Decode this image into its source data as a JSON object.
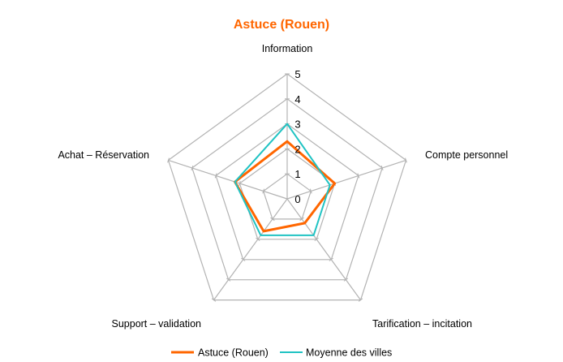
{
  "chart_data": {
    "type": "radar",
    "title": "Astuce (Rouen)",
    "axes": [
      "Information",
      "Compte personnel",
      "Tarification – incitation",
      "Support – validation",
      "Achat – Réservation"
    ],
    "ticks": [
      "0",
      "1",
      "2",
      "3",
      "4",
      "5"
    ],
    "rmin": 0,
    "rmax": 5,
    "grid": true,
    "legend_position": "bottom",
    "series": [
      {
        "name": "Astuce (Rouen)",
        "values": [
          2.3,
          2.0,
          1.2,
          1.6,
          2.2
        ]
      },
      {
        "name": "Moyenne des villes",
        "values": [
          3.0,
          1.8,
          1.8,
          1.8,
          2.2
        ]
      }
    ]
  },
  "colors": {
    "title": "#ff6600",
    "series": [
      "#ff6600",
      "#20c3c3"
    ],
    "grid": "#b3b3b3"
  }
}
